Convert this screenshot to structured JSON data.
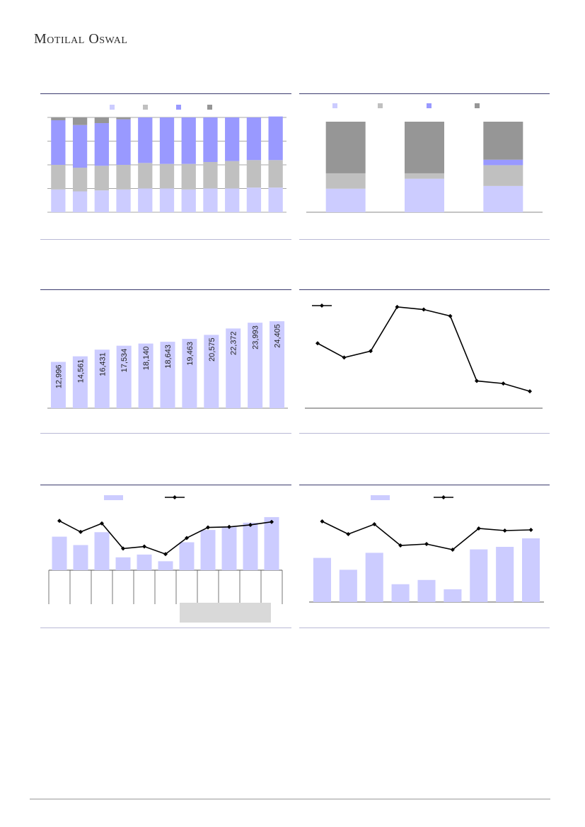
{
  "header": {
    "brand": "Motilal Oswal"
  },
  "colors": {
    "light_lavender": "#ccccff",
    "light_grey": "#c0c0c0",
    "mid_blue": "#9999ff",
    "dark_grey": "#969696",
    "line": "#000000",
    "rule": "#3b3b6e"
  },
  "chart_data": [
    {
      "type": "bar",
      "stacked": true,
      "percent_stacked": true,
      "legend_swatch_colors": [
        "#ccccff",
        "#c0c0c0",
        "#9999ff",
        "#969696"
      ],
      "series": [
        {
          "color": "#ccccff",
          "values": [
            24,
            22,
            23,
            24,
            25,
            25,
            24,
            25,
            25,
            26,
            26
          ]
        },
        {
          "color": "#c0c0c0",
          "values": [
            26,
            25,
            26,
            26,
            27,
            26,
            27,
            28,
            29,
            29,
            29
          ]
        },
        {
          "color": "#9999ff",
          "values": [
            47,
            45,
            45,
            48,
            48,
            49,
            49,
            47,
            46,
            45,
            46
          ]
        },
        {
          "color": "#969696",
          "values": [
            3,
            8,
            6,
            2,
            0,
            0,
            0,
            0,
            0,
            0,
            0
          ]
        }
      ],
      "ylim": [
        0,
        100
      ],
      "grid": true
    },
    {
      "type": "bar",
      "stacked": true,
      "percent_stacked": true,
      "legend_swatch_colors": [
        "#ccccff",
        "#c0c0c0",
        "#9999ff",
        "#969696"
      ],
      "series": [
        {
          "color": "#ccccff",
          "values": [
            26,
            37,
            29
          ]
        },
        {
          "color": "#c0c0c0",
          "values": [
            17,
            6,
            23
          ]
        },
        {
          "color": "#9999ff",
          "values": [
            0,
            0,
            6
          ]
        },
        {
          "color": "#969696",
          "values": [
            57,
            57,
            42
          ]
        }
      ],
      "ylim": [
        0,
        100
      ],
      "grid": false
    },
    {
      "type": "bar",
      "values": [
        12996,
        14561,
        16431,
        17534,
        18140,
        18643,
        19463,
        20575,
        22372,
        23993,
        24405
      ],
      "data_labels": [
        "12,996",
        "14,561",
        "16,431",
        "17,534",
        "18,140",
        "18,643",
        "19,463",
        "20,575",
        "22,372",
        "23,993",
        "24,405"
      ],
      "ylim": [
        0,
        27000
      ],
      "color": "#ccccff"
    },
    {
      "type": "line",
      "values": [
        50,
        39,
        44,
        78,
        76,
        71,
        21,
        19,
        13
      ],
      "ylim": [
        0,
        85
      ],
      "legend_swatch": "line-marker",
      "color": "#000000"
    },
    {
      "type": "bar",
      "bars": [
        60,
        45,
        68,
        23,
        28,
        16,
        50,
        72,
        77,
        85,
        95
      ],
      "line": [
        84,
        62,
        79,
        29,
        33,
        18,
        50,
        71,
        72,
        76,
        82
      ],
      "ylim": [
        0,
        100
      ],
      "legend_swatches": [
        "bar",
        "line-marker"
      ],
      "x_divider_count": 12
    },
    {
      "type": "bar",
      "bars": [
        52,
        38,
        58,
        21,
        26,
        15,
        62,
        65,
        75
      ],
      "line": [
        100,
        82,
        96,
        66,
        68,
        60,
        90,
        87,
        88
      ],
      "ylim": [
        0,
        120
      ],
      "legend_swatches": [
        "bar",
        "line-marker"
      ]
    }
  ]
}
